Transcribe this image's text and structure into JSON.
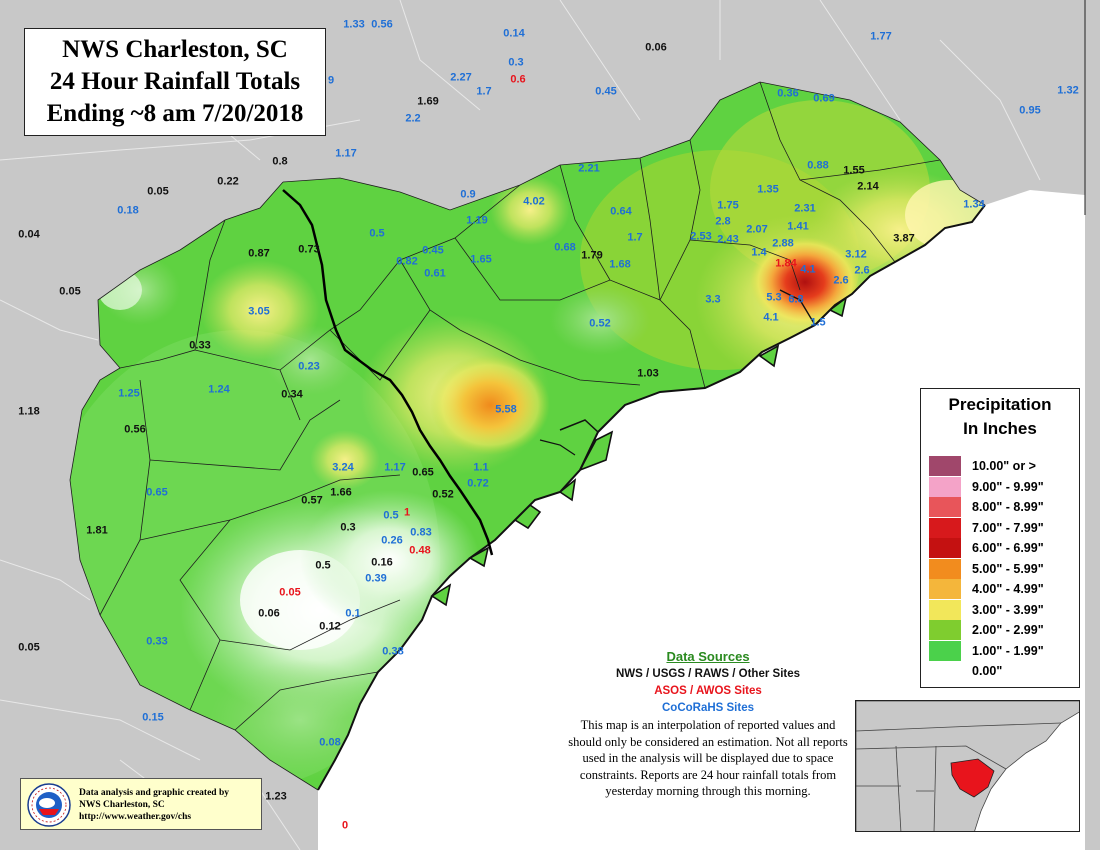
{
  "title": {
    "line1": "NWS Charleston, SC",
    "line2": "24 Hour Rainfall Totals",
    "line3": "Ending ~8 am 7/20/2018"
  },
  "legend": {
    "title_line1": "Precipitation",
    "title_line2": "In Inches",
    "items": [
      {
        "label": "10.00\" or >",
        "color": "#a0476b"
      },
      {
        "label": "9.00\" - 9.99\"",
        "color": "#f4a3c8"
      },
      {
        "label": "8.00\" - 8.99\"",
        "color": "#e8555a"
      },
      {
        "label": "7.00\" - 7.99\"",
        "color": "#d7191c"
      },
      {
        "label": "6.00\" - 6.99\"",
        "color": "#c41111"
      },
      {
        "label": "5.00\" - 5.99\"",
        "color": "#f28c1e"
      },
      {
        "label": "4.00\" - 4.99\"",
        "color": "#f4b63b"
      },
      {
        "label": "3.00\" - 3.99\"",
        "color": "#f2e75a"
      },
      {
        "label": "2.00\" - 2.99\"",
        "color": "#7fcd2f"
      },
      {
        "label": "1.00\" - 1.99\"",
        "color": "#4bd14b"
      },
      {
        "label": "0.00\"",
        "color": "#ffffff"
      }
    ]
  },
  "data_sources": {
    "heading": "Data Sources",
    "line1": "NWS / USGS / RAWS / Other Sites",
    "line2": "ASOS / AWOS Sites",
    "line3": "CoCoRaHS Sites",
    "disclaimer": "This map is an interpolation of reported values and should only be considered an estimation. Not all reports used in the analysis will be displayed due to space constraints. Reports are 24 hour rainfall totals from yesterday morning through this morning."
  },
  "credit": {
    "line1": "Data analysis and graphic created by",
    "line2": "NWS Charleston, SC",
    "line3": "http://www.weather.gov/chs"
  },
  "colors": {
    "nws_black": "#111111",
    "asos_red": "#e8141c",
    "cocorahs_blue": "#1f6fd6",
    "ocean": "#ffffff",
    "outside_land": "#c8c8c8"
  },
  "rainfall_reports": [
    {
      "value": "1.33",
      "type": "cocorahs"
    },
    {
      "value": "0.56",
      "type": "cocorahs"
    },
    {
      "value": "0.14",
      "type": "cocorahs"
    },
    {
      "value": "0.06",
      "type": "nws"
    },
    {
      "value": "1.77",
      "type": "cocorahs"
    },
    {
      "value": "0.3",
      "type": "cocorahs"
    },
    {
      "value": "0.6",
      "type": "asos"
    },
    {
      "value": "2.27",
      "type": "cocorahs"
    },
    {
      "value": "1.7",
      "type": "cocorahs"
    },
    {
      "value": "0.45",
      "type": "cocorahs"
    },
    {
      "value": "0.36",
      "type": "cocorahs"
    },
    {
      "value": "0.69",
      "type": "cocorahs"
    },
    {
      "value": "1.32",
      "type": "cocorahs"
    },
    {
      "value": "1.69",
      "type": "nws"
    },
    {
      "value": "2.2",
      "type": "cocorahs"
    },
    {
      "value": "0.95",
      "type": "cocorahs"
    },
    {
      "value": "9",
      "type": "cocorahs"
    },
    {
      "value": "1.17",
      "type": "cocorahs"
    },
    {
      "value": "0.8",
      "type": "nws"
    },
    {
      "value": "0.22",
      "type": "nws"
    },
    {
      "value": "0.05",
      "type": "nws"
    },
    {
      "value": "0.18",
      "type": "cocorahs"
    },
    {
      "value": "0.04",
      "type": "nws"
    },
    {
      "value": "2.21",
      "type": "cocorahs"
    },
    {
      "value": "0.88",
      "type": "cocorahs"
    },
    {
      "value": "1.55",
      "type": "nws"
    },
    {
      "value": "2.14",
      "type": "nws"
    },
    {
      "value": "0.9",
      "type": "cocorahs"
    },
    {
      "value": "1.35",
      "type": "cocorahs"
    },
    {
      "value": "1.19",
      "type": "cocorahs"
    },
    {
      "value": "4.02",
      "type": "cocorahs"
    },
    {
      "value": "0.64",
      "type": "cocorahs"
    },
    {
      "value": "1.75",
      "type": "cocorahs"
    },
    {
      "value": "2.31",
      "type": "cocorahs"
    },
    {
      "value": "1.34",
      "type": "cocorahs"
    },
    {
      "value": "0.87",
      "type": "nws"
    },
    {
      "value": "0.73",
      "type": "nws"
    },
    {
      "value": "0.5",
      "type": "cocorahs"
    },
    {
      "value": "0.45",
      "type": "cocorahs"
    },
    {
      "value": "0.68",
      "type": "cocorahs"
    },
    {
      "value": "1.79",
      "type": "nws"
    },
    {
      "value": "1.7",
      "type": "cocorahs"
    },
    {
      "value": "2.8",
      "type": "cocorahs"
    },
    {
      "value": "2.07",
      "type": "cocorahs"
    },
    {
      "value": "1.41",
      "type": "cocorahs"
    },
    {
      "value": "2.53",
      "type": "cocorahs"
    },
    {
      "value": "2.43",
      "type": "cocorahs"
    },
    {
      "value": "2.88",
      "type": "cocorahs"
    },
    {
      "value": "3.87",
      "type": "nws"
    },
    {
      "value": "0.82",
      "type": "cocorahs"
    },
    {
      "value": "1.65",
      "type": "cocorahs"
    },
    {
      "value": "1.68",
      "type": "cocorahs"
    },
    {
      "value": "1.4",
      "type": "cocorahs"
    },
    {
      "value": "3.12",
      "type": "cocorahs"
    },
    {
      "value": "0.61",
      "type": "cocorahs"
    },
    {
      "value": "1.84",
      "type": "asos"
    },
    {
      "value": "4.1",
      "type": "cocorahs"
    },
    {
      "value": "2.6",
      "type": "cocorahs"
    },
    {
      "value": "0.05",
      "type": "nws"
    },
    {
      "value": "2.6",
      "type": "cocorahs"
    },
    {
      "value": "3.05",
      "type": "cocorahs"
    },
    {
      "value": "3.3",
      "type": "cocorahs"
    },
    {
      "value": "5.3",
      "type": "cocorahs"
    },
    {
      "value": "6.8",
      "type": "cocorahs"
    },
    {
      "value": "0.52",
      "type": "cocorahs"
    },
    {
      "value": "4.1",
      "type": "cocorahs"
    },
    {
      "value": "1.5",
      "type": "cocorahs"
    },
    {
      "value": "0.33",
      "type": "nws"
    },
    {
      "value": "0.23",
      "type": "cocorahs"
    },
    {
      "value": "1.03",
      "type": "nws"
    },
    {
      "value": "1.25",
      "type": "cocorahs"
    },
    {
      "value": "1.24",
      "type": "cocorahs"
    },
    {
      "value": "0.34",
      "type": "nws"
    },
    {
      "value": "1.18",
      "type": "nws"
    },
    {
      "value": "5.58",
      "type": "cocorahs"
    },
    {
      "value": "0.56",
      "type": "nws"
    },
    {
      "value": "3.24",
      "type": "cocorahs"
    },
    {
      "value": "1.17",
      "type": "cocorahs"
    },
    {
      "value": "0.65",
      "type": "nws"
    },
    {
      "value": "1.1",
      "type": "cocorahs"
    },
    {
      "value": "0.65",
      "type": "cocorahs"
    },
    {
      "value": "1.66",
      "type": "nws"
    },
    {
      "value": "0.72",
      "type": "cocorahs"
    },
    {
      "value": "0.57",
      "type": "nws"
    },
    {
      "value": "0.52",
      "type": "nws"
    },
    {
      "value": "1.81",
      "type": "nws"
    },
    {
      "value": "0.5",
      "type": "cocorahs"
    },
    {
      "value": "1",
      "type": "asos"
    },
    {
      "value": "0.3",
      "type": "nws"
    },
    {
      "value": "0.83",
      "type": "cocorahs"
    },
    {
      "value": "0.26",
      "type": "cocorahs"
    },
    {
      "value": "0.48",
      "type": "asos"
    },
    {
      "value": "0.5",
      "type": "nws"
    },
    {
      "value": "0.16",
      "type": "nws"
    },
    {
      "value": "0.39",
      "type": "cocorahs"
    },
    {
      "value": "0.05",
      "type": "asos"
    },
    {
      "value": "0.06",
      "type": "nws"
    },
    {
      "value": "0.1",
      "type": "cocorahs"
    },
    {
      "value": "0.12",
      "type": "nws"
    },
    {
      "value": "0.33",
      "type": "cocorahs"
    },
    {
      "value": "0.05",
      "type": "nws"
    },
    {
      "value": "0.38",
      "type": "cocorahs"
    },
    {
      "value": "0.15",
      "type": "cocorahs"
    },
    {
      "value": "0.08",
      "type": "cocorahs"
    },
    {
      "value": "1.23",
      "type": "nws"
    },
    {
      "value": "0",
      "type": "asos"
    }
  ]
}
